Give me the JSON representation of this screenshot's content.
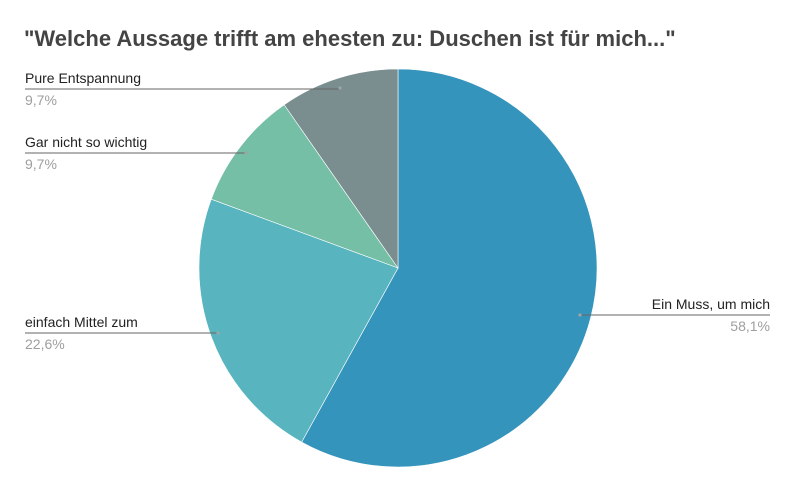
{
  "chart_data": {
    "type": "pie",
    "title": "\"Welche Aussage trifft am ehesten zu: Duschen ist für mich...\"",
    "slices": [
      {
        "label": "Ein Muss, um mich",
        "percent_label": "58,1%",
        "value": 58.1,
        "color": "#3594bc"
      },
      {
        "label": "einfach Mittel zum",
        "percent_label": "22,6%",
        "value": 22.6,
        "color": "#58b5bf"
      },
      {
        "label": "Gar nicht so wichtig",
        "percent_label": "9,7%",
        "value": 9.7,
        "color": "#74bfa5"
      },
      {
        "label": "Pure Entspannung",
        "percent_label": "9,7%",
        "value": 9.7,
        "color": "#7a8e8f"
      }
    ],
    "start_angle_deg": 0,
    "direction": "clockwise"
  }
}
